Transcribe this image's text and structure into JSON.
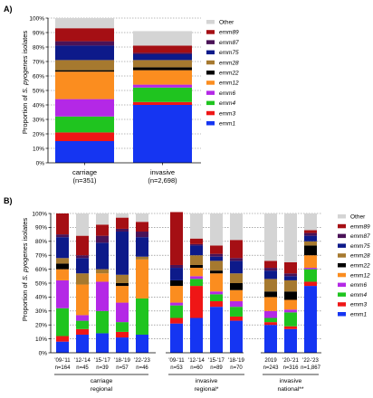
{
  "colors": {
    "Other": "#d4d4d4",
    "emm89": "#a50f14",
    "emm87": "#4a1357",
    "emm75": "#0d1a8a",
    "emm28": "#a6792f",
    "emm22": "#000000",
    "emm12": "#fb8d1f",
    "emm6": "#b428e6",
    "emm4": "#1fc41f",
    "emm3": "#ef1616",
    "emm1": "#1535f2"
  },
  "stack_order": [
    "emm1",
    "emm3",
    "emm4",
    "emm6",
    "emm12",
    "emm22",
    "emm28",
    "emm75",
    "emm87",
    "emm89",
    "Other"
  ],
  "chart_data": [
    {
      "panel": "A)",
      "type": "bar",
      "stacked": true,
      "ylabel": "Proportion of S. pyogenes isolates",
      "ylabel_plain": "Proportion of ",
      "ylabel_italic": "S. pyogenes",
      "ylabel_rest": " isolates",
      "ylim": [
        0,
        100
      ],
      "yticks": [
        "0%",
        "10%",
        "20%",
        "30%",
        "40%",
        "50%",
        "60%",
        "70%",
        "80%",
        "90%",
        "100%"
      ],
      "grid": true,
      "legend_placement": "right",
      "legend": [
        "Other",
        "emm89",
        "emm87",
        "emm75",
        "emm28",
        "emm22",
        "emm12",
        "emm6",
        "emm4",
        "emm3",
        "emm1"
      ],
      "categories": [
        {
          "label": "carriage",
          "n": "(n=351)"
        },
        {
          "label": "invasive",
          "n": "(n=2,698)"
        }
      ],
      "series": [
        {
          "name": "emm1",
          "values": [
            15,
            40
          ]
        },
        {
          "name": "emm3",
          "values": [
            6,
            2
          ]
        },
        {
          "name": "emm4",
          "values": [
            11,
            10
          ]
        },
        {
          "name": "emm6",
          "values": [
            12,
            2
          ]
        },
        {
          "name": "emm12",
          "values": [
            19,
            10
          ]
        },
        {
          "name": "emm22",
          "values": [
            1,
            2
          ]
        },
        {
          "name": "emm28",
          "values": [
            7,
            5
          ]
        },
        {
          "name": "emm75",
          "values": [
            10,
            4
          ]
        },
        {
          "name": "emm87",
          "values": [
            3,
            1
          ]
        },
        {
          "name": "emm89",
          "values": [
            9,
            5
          ]
        },
        {
          "name": "Other",
          "values": [
            7,
            10
          ]
        }
      ]
    },
    {
      "panel": "B)",
      "type": "bar",
      "stacked": true,
      "ylabel": "Proportion of S. pyogenes isolates",
      "ylabel_plain": "Proportion of ",
      "ylabel_italic": "S. pyogenes",
      "ylabel_rest": " isolates",
      "ylim": [
        0,
        100
      ],
      "yticks": [
        "0%",
        "10%",
        "20%",
        "30%",
        "40%",
        "50%",
        "60%",
        "70%",
        "80%",
        "90%",
        "100%"
      ],
      "grid": true,
      "legend_placement": "right",
      "legend": [
        "Other",
        "emm89",
        "emm87",
        "emm75",
        "emm28",
        "emm22",
        "emm12",
        "emm6",
        "emm4",
        "emm3",
        "emm1"
      ],
      "groups": [
        {
          "line1": "carriage",
          "line2": "regional"
        },
        {
          "line1": "invasive",
          "line2": "regional*"
        },
        {
          "line1": "invasive",
          "line2": "national**"
        }
      ],
      "categories": [
        {
          "period": "'09-'11",
          "n": "n=164",
          "group": 0
        },
        {
          "period": "'12-'14",
          "n": "n=45",
          "group": 0
        },
        {
          "period": "'15-'17",
          "n": "n=39",
          "group": 0
        },
        {
          "period": "'18-'19",
          "n": "n=57",
          "group": 0
        },
        {
          "period": "'22-'23",
          "n": "n=46",
          "group": 0
        },
        {
          "period": "'09-'11",
          "n": "n=53",
          "group": 1
        },
        {
          "period": "'12-'14",
          "n": "n=60",
          "group": 1
        },
        {
          "period": "'15-'17",
          "n": "n=89",
          "group": 1
        },
        {
          "period": "'18-'19",
          "n": "n=70",
          "group": 1
        },
        {
          "period": "2019",
          "n": "n=243",
          "group": 2
        },
        {
          "period": "'20-'21",
          "n": "n=316",
          "group": 2
        },
        {
          "period": "'22-'23",
          "n": "n=1,867",
          "group": 2
        }
      ],
      "series": [
        {
          "name": "emm1",
          "values": [
            8,
            13,
            14,
            11,
            13,
            21,
            25,
            33,
            23,
            20,
            17,
            48
          ]
        },
        {
          "name": "emm3",
          "values": [
            4,
            4,
            0,
            4,
            0,
            4,
            23,
            4,
            3,
            2,
            2,
            3
          ]
        },
        {
          "name": "emm4",
          "values": [
            20,
            6,
            16,
            7,
            26,
            9,
            5,
            5,
            7,
            3,
            10,
            9
          ]
        },
        {
          "name": "emm6",
          "values": [
            20,
            4,
            21,
            14,
            0,
            2,
            2,
            2,
            4,
            5,
            2,
            1
          ]
        },
        {
          "name": "emm12",
          "values": [
            8,
            22,
            6,
            12,
            28,
            12,
            6,
            13,
            8,
            10,
            7,
            9
          ]
        },
        {
          "name": "emm22",
          "values": [
            4,
            0,
            0,
            2,
            0,
            4,
            2,
            2,
            5,
            4,
            6,
            7
          ]
        },
        {
          "name": "emm28",
          "values": [
            4,
            8,
            3,
            6,
            2,
            0,
            7,
            7,
            7,
            9,
            8,
            3
          ]
        },
        {
          "name": "emm75",
          "values": [
            15,
            11,
            19,
            31,
            14,
            9,
            7,
            3,
            9,
            6,
            3,
            4
          ]
        },
        {
          "name": "emm87",
          "values": [
            2,
            2,
            5,
            2,
            4,
            2,
            1,
            2,
            2,
            2,
            2,
            2
          ]
        },
        {
          "name": "emm89",
          "values": [
            15,
            14,
            8,
            8,
            7,
            38,
            4,
            6,
            13,
            5,
            8,
            2
          ]
        },
        {
          "name": "Other",
          "values": [
            0,
            16,
            8,
            3,
            6,
            0,
            18,
            23,
            19,
            34,
            35,
            12
          ]
        }
      ]
    }
  ]
}
